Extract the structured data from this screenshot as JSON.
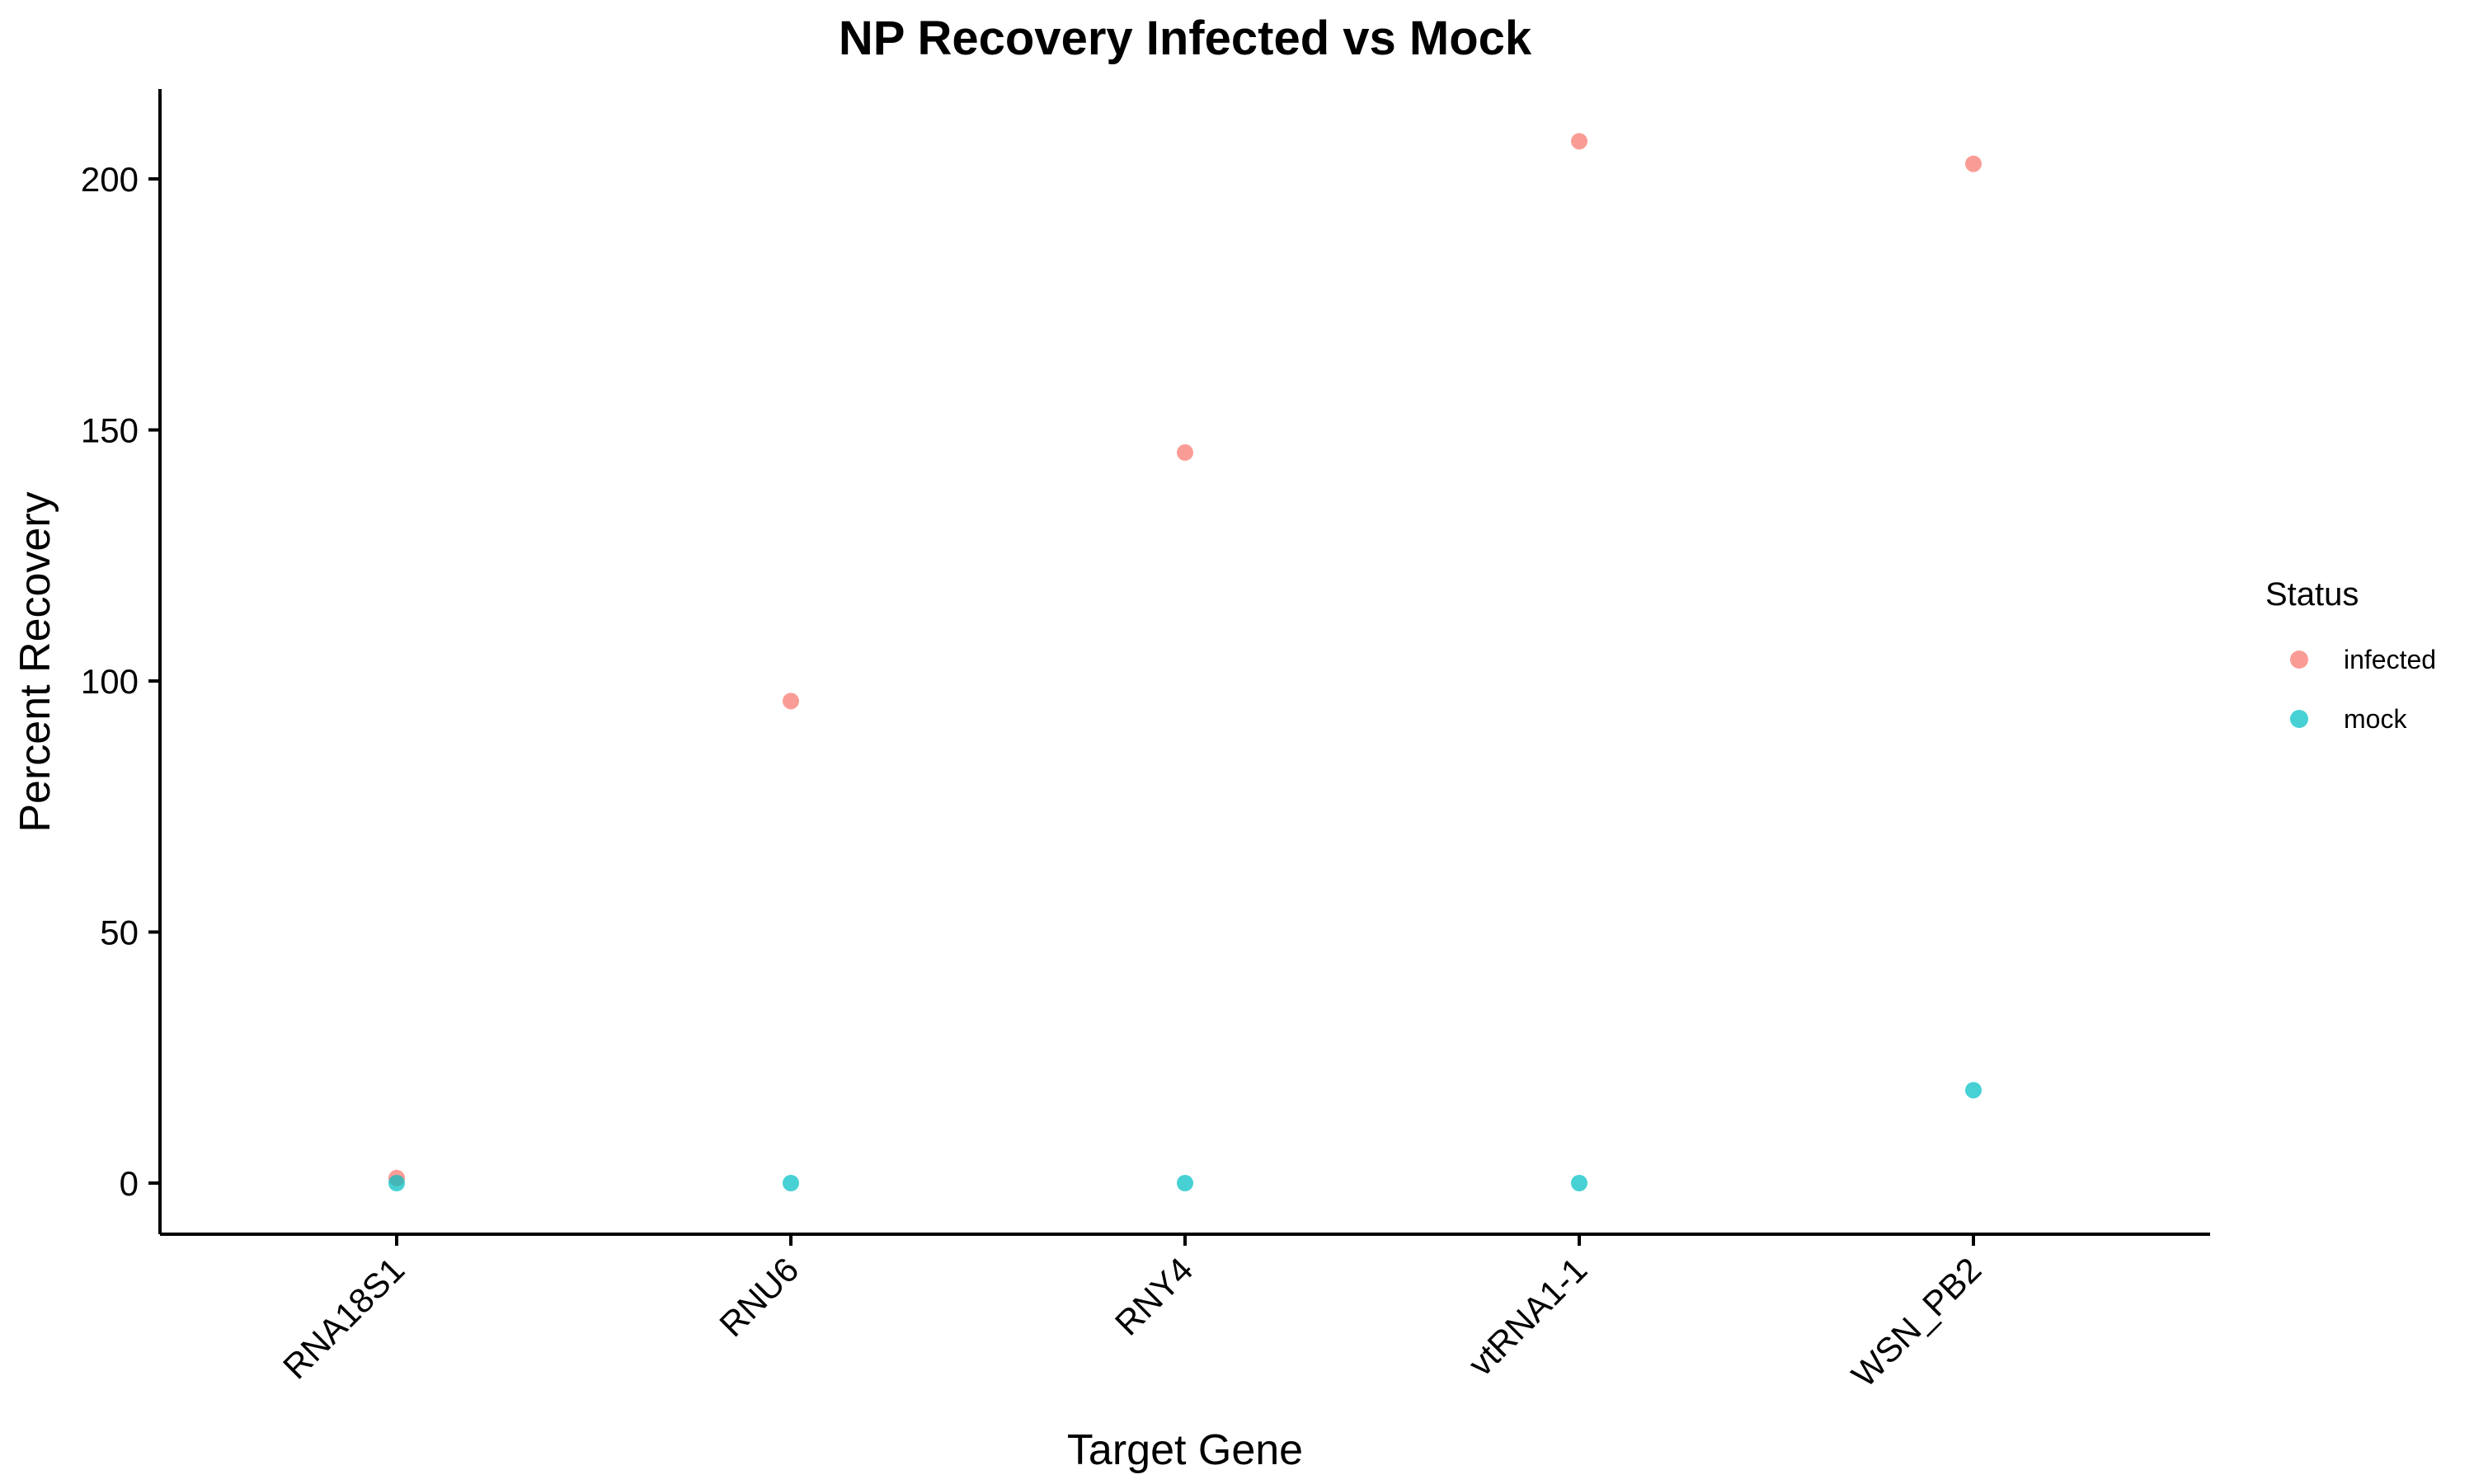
{
  "chart_data": {
    "type": "scatter",
    "title": "NP Recovery Infected vs Mock",
    "xlabel": "Target Gene",
    "ylabel": "Percent Recovery",
    "categories": [
      "RNA18S1",
      "RNU6",
      "RNY4",
      "vtRNA1-1",
      "WSN_PB2"
    ],
    "ylim": [
      -10,
      218
    ],
    "yticks": [
      0,
      50,
      100,
      150,
      200
    ],
    "grid": false,
    "legend": {
      "title": "Status",
      "position": "right"
    },
    "series": [
      {
        "name": "infected",
        "color": "#F8766D",
        "values": [
          1,
          96,
          145.5,
          207.5,
          203
        ]
      },
      {
        "name": "mock",
        "color": "#00BFC4",
        "values": [
          0,
          0,
          0,
          0,
          18.5
        ]
      }
    ]
  }
}
